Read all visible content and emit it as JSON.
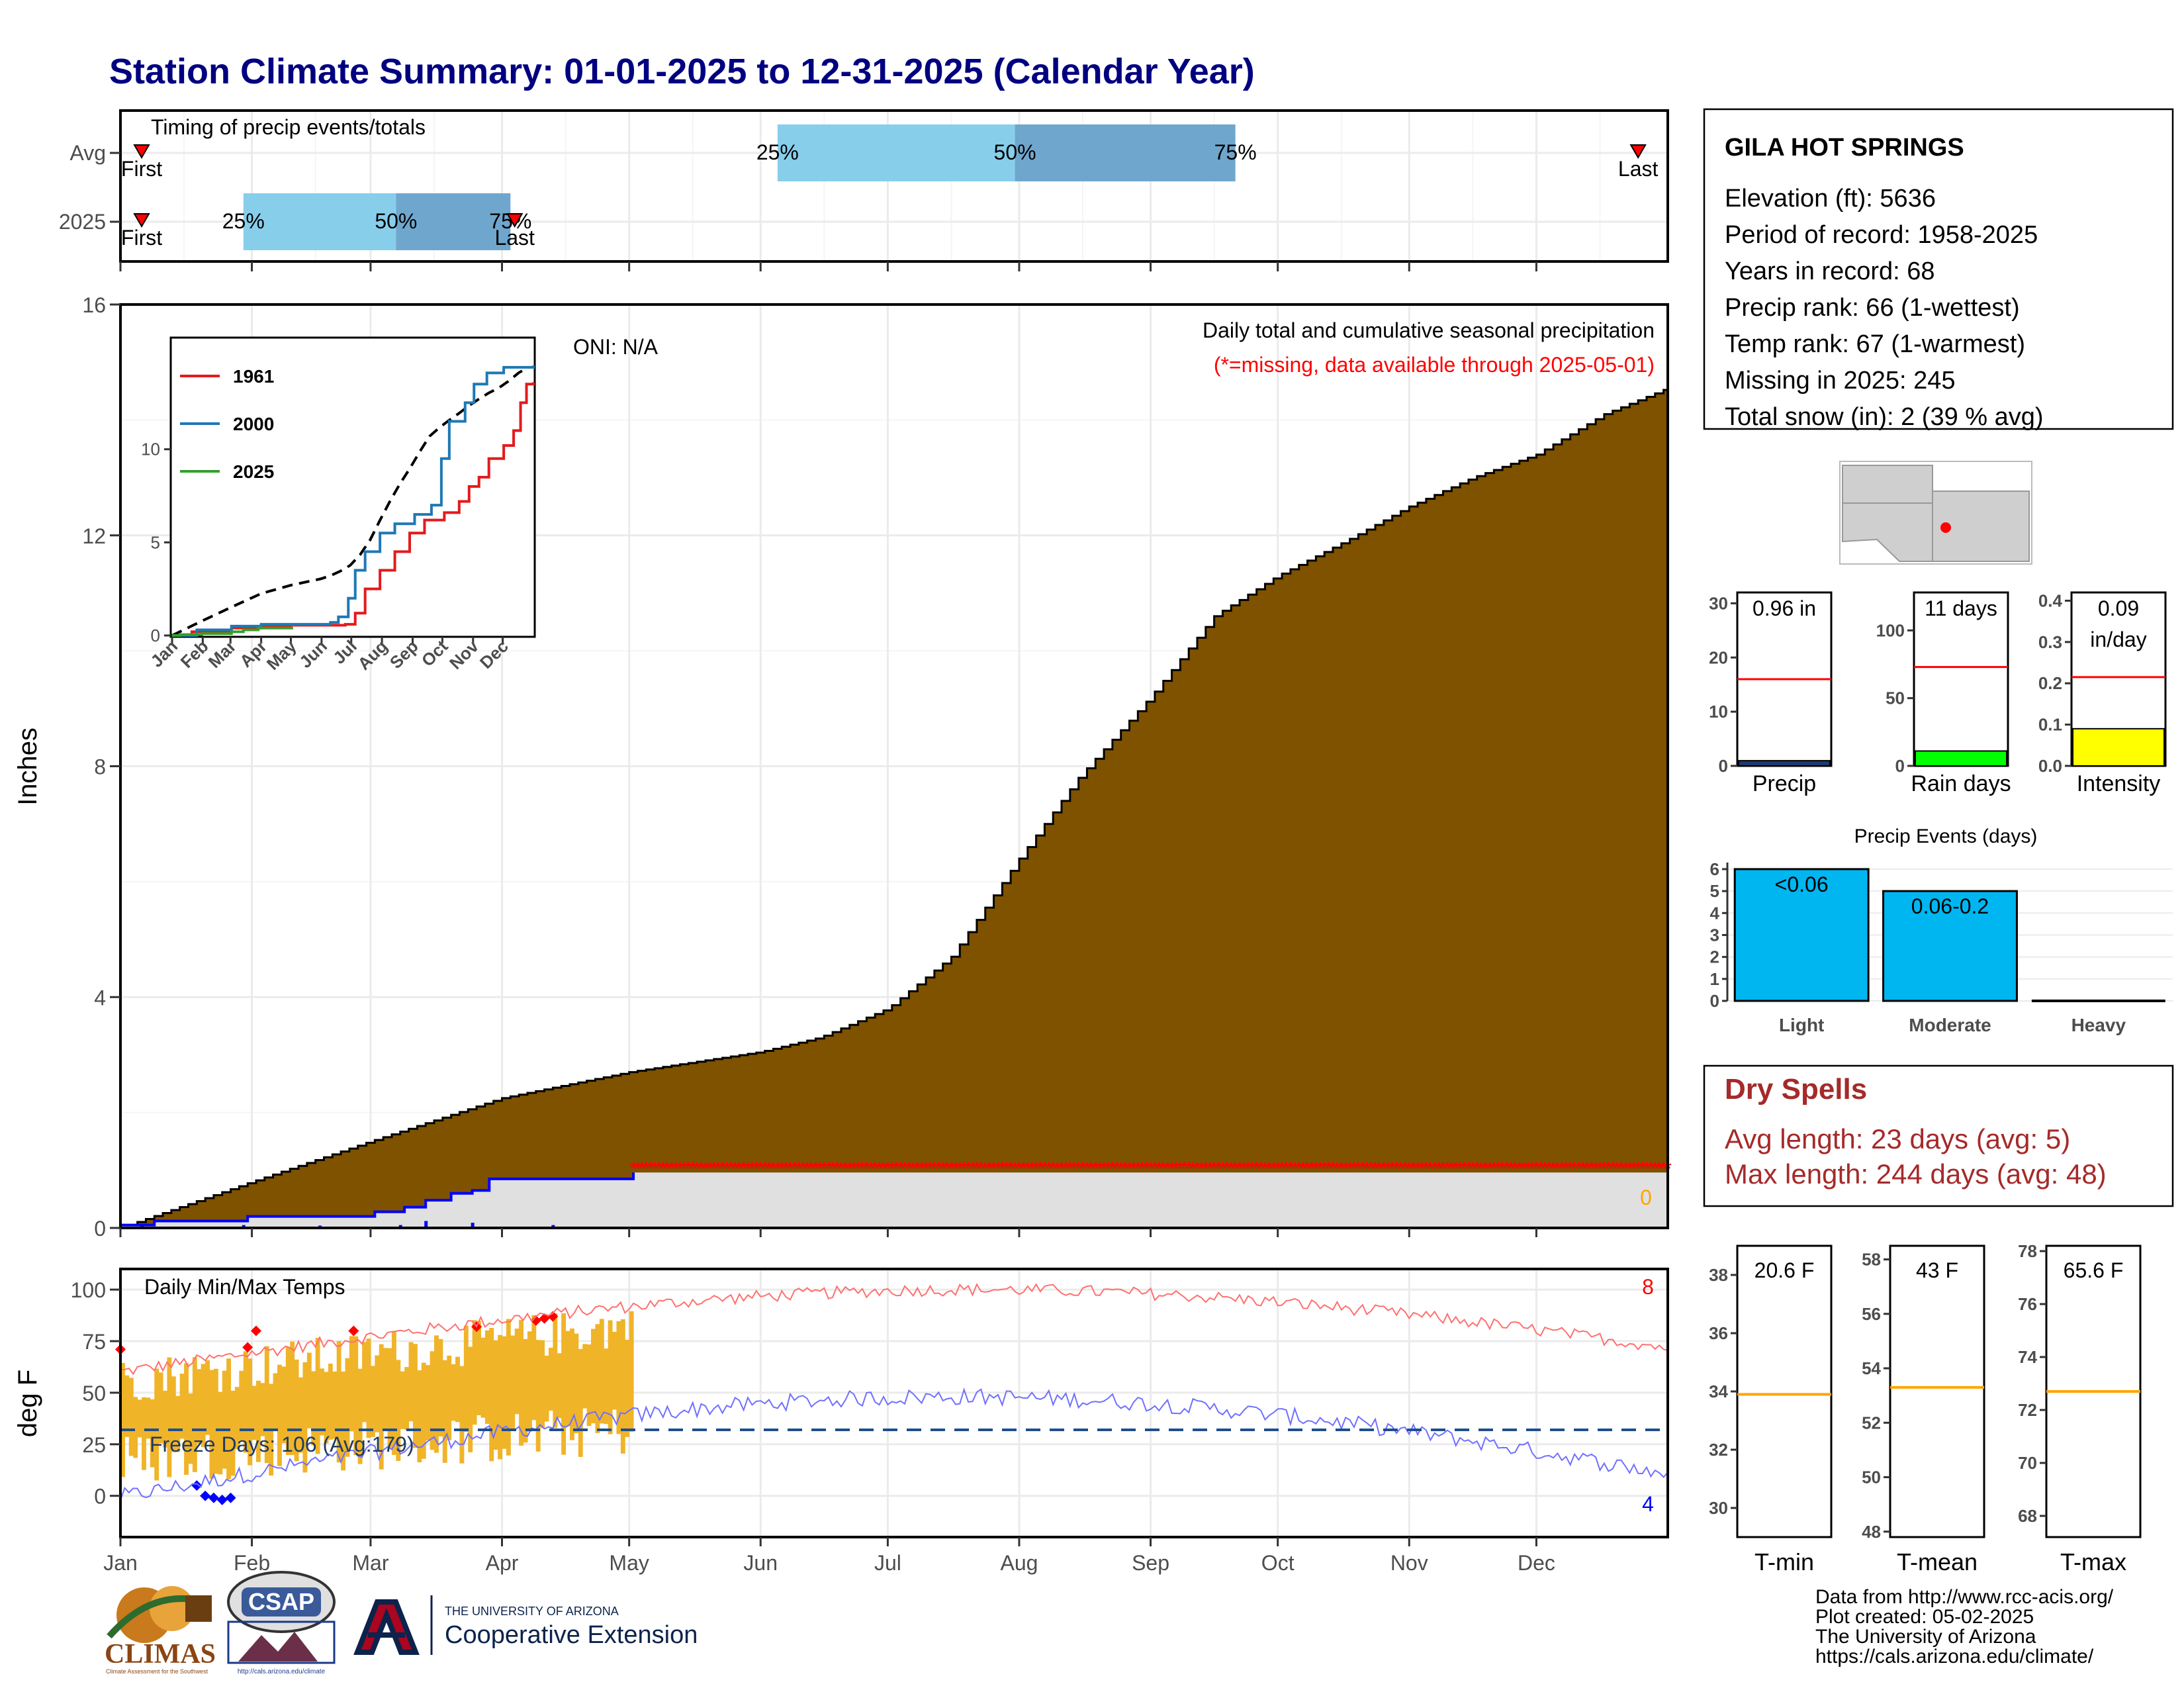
{
  "title": "Station Climate Summary: 01-01-2025 to 12-31-2025 (Calendar Year)",
  "colors": {
    "title": "#000080",
    "precip_fill": "#7f5200",
    "q25_50": "#87ceeb",
    "q50_75": "#6fa6cd",
    "tmax_line": "#ff0000",
    "tmin_line": "#0000ff",
    "temp_bar": "#f0b429",
    "missing": "#ff0000",
    "dry_spells": "#a52a2a",
    "avg_line": "#ff0000"
  },
  "timing": {
    "title": "Timing of precip events/totals",
    "row_labels": [
      "Avg",
      "2025"
    ],
    "avg": {
      "first_label": "First",
      "last_label": "Last",
      "first_day": 5,
      "last_day": 358,
      "q25_day": 155,
      "q50_day": 211,
      "q75_day": 263,
      "q25_label": "25%",
      "q50_label": "50%",
      "q75_label": "75%"
    },
    "y2025": {
      "first_label": "First",
      "last_label": "Last",
      "first_day": 5,
      "last_day": 93,
      "q25_day": 29,
      "q50_day": 65,
      "q75_day": 92,
      "q25_label": "25%",
      "q50_label": "50%",
      "q75_label": "75%"
    }
  },
  "main_precip": {
    "ylabel": "Inches",
    "y_ticks": [
      "0",
      "4",
      "8",
      "12",
      "16"
    ],
    "ylim": [
      0,
      16
    ],
    "subtitle1": "Daily total and cumulative seasonal precipitation",
    "subtitle2": "(*=missing, data available through 2025-05-01)",
    "oni": "ONI: N/A",
    "zero_label": "0",
    "missing_from_day": 121
  },
  "months": [
    "Jan",
    "Feb",
    "Mar",
    "Apr",
    "May",
    "Jun",
    "Jul",
    "Aug",
    "Sep",
    "Oct",
    "Nov",
    "Dec"
  ],
  "inset": {
    "legend": [
      {
        "name": "1961",
        "color": "#e31a1c"
      },
      {
        "name": "2000",
        "color": "#1f78b4"
      },
      {
        "name": "2025",
        "color": "#33a02c"
      }
    ],
    "y_ticks": [
      "0",
      "5",
      "10"
    ],
    "ylim": [
      0,
      15
    ]
  },
  "temps": {
    "title": "Daily Min/Max Temps",
    "ylabel": "deg F",
    "y_ticks": [
      "0",
      "25",
      "50",
      "75",
      "100"
    ],
    "ylim": [
      -20,
      110
    ],
    "freeze_text": "Freeze Days: 106 (Avg:179)",
    "freeze_line": 32,
    "count_high": "8",
    "count_low": "4"
  },
  "station": {
    "name": "GILA HOT SPRINGS",
    "lines": [
      "Elevation (ft): 5636",
      "Period of record: 1958-2025",
      "Years in record: 68",
      "Precip rank: 66 (1-wettest)",
      "Temp rank: 67 (1-warmest)",
      "Missing in 2025: 245",
      "Total snow (in): 2 (39 % avg)"
    ]
  },
  "mini_bars": [
    {
      "label": "Precip",
      "value_text": "0.96 in",
      "value": 0.96,
      "avg": 16,
      "ylim": [
        0,
        32
      ],
      "ticks": [
        "0",
        "10",
        "20",
        "30"
      ],
      "tick_values": [
        0,
        10,
        20,
        30
      ],
      "color": "#1c3a6e"
    },
    {
      "label": "Rain days",
      "value_text": "11 days",
      "value": 11,
      "avg": 73,
      "ylim": [
        0,
        128
      ],
      "ticks": [
        "0",
        "50",
        "100"
      ],
      "tick_values": [
        0,
        50,
        100
      ],
      "color": "#00ff00"
    },
    {
      "label": "Intensity",
      "value_text": "0.09",
      "value_text2": "in/day",
      "value": 0.09,
      "avg": 0.215,
      "ylim": [
        0,
        0.42
      ],
      "ticks": [
        "0.0",
        "0.1",
        "0.2",
        "0.3",
        "0.4"
      ],
      "tick_values": [
        0,
        0.1,
        0.2,
        0.3,
        0.4
      ],
      "color": "#ffff00"
    }
  ],
  "precip_events": {
    "title": "Precip Events (days)",
    "categories": [
      "Light",
      "Moderate",
      "Heavy"
    ],
    "labels": [
      "<0.06",
      "0.06-0.2",
      ""
    ],
    "values": [
      6,
      5,
      0
    ],
    "y_ticks": [
      "0",
      "1",
      "2",
      "3",
      "4",
      "5",
      "6"
    ],
    "ylim": [
      0,
      6.3
    ]
  },
  "dry_spells": {
    "title": "Dry Spells",
    "avg_line": "Avg length: 23 days (avg: 5)",
    "max_line": "Max length: 244 days (avg: 48)"
  },
  "temp_bars": [
    {
      "label": "T-min",
      "value_text": "20.6 F",
      "avg": 33.9,
      "ylim": [
        29,
        39
      ],
      "ticks": [
        "30",
        "32",
        "34",
        "36",
        "38"
      ],
      "tick_values": [
        30,
        32,
        34,
        36,
        38
      ]
    },
    {
      "label": "T-mean",
      "value_text": "43 F",
      "avg": 53.3,
      "ylim": [
        47.8,
        58.5
      ],
      "ticks": [
        "48",
        "50",
        "52",
        "54",
        "56",
        "58"
      ],
      "tick_values": [
        48,
        50,
        52,
        54,
        56,
        58
      ]
    },
    {
      "label": "T-max",
      "value_text": "65.6 F",
      "avg": 72.7,
      "ylim": [
        67.2,
        78.2
      ],
      "ticks": [
        "68",
        "70",
        "72",
        "74",
        "76",
        "78"
      ],
      "tick_values": [
        68,
        70,
        72,
        74,
        76,
        78
      ]
    }
  ],
  "footer": {
    "lines": [
      "Data from http://www.rcc-acis.org/",
      "Plot created: 05-02-2025",
      "The University of Arizona",
      "https://cals.arizona.edu/climate/"
    ],
    "climas": "CLIMAS",
    "climas_sub": "Climate Assessment for the Southwest",
    "csap": "CSAP",
    "csap_url": "http://cals.arizona.edu/climate",
    "ua_small": "THE UNIVERSITY OF ARIZONA",
    "ua_big": "Cooperative Extension"
  }
}
